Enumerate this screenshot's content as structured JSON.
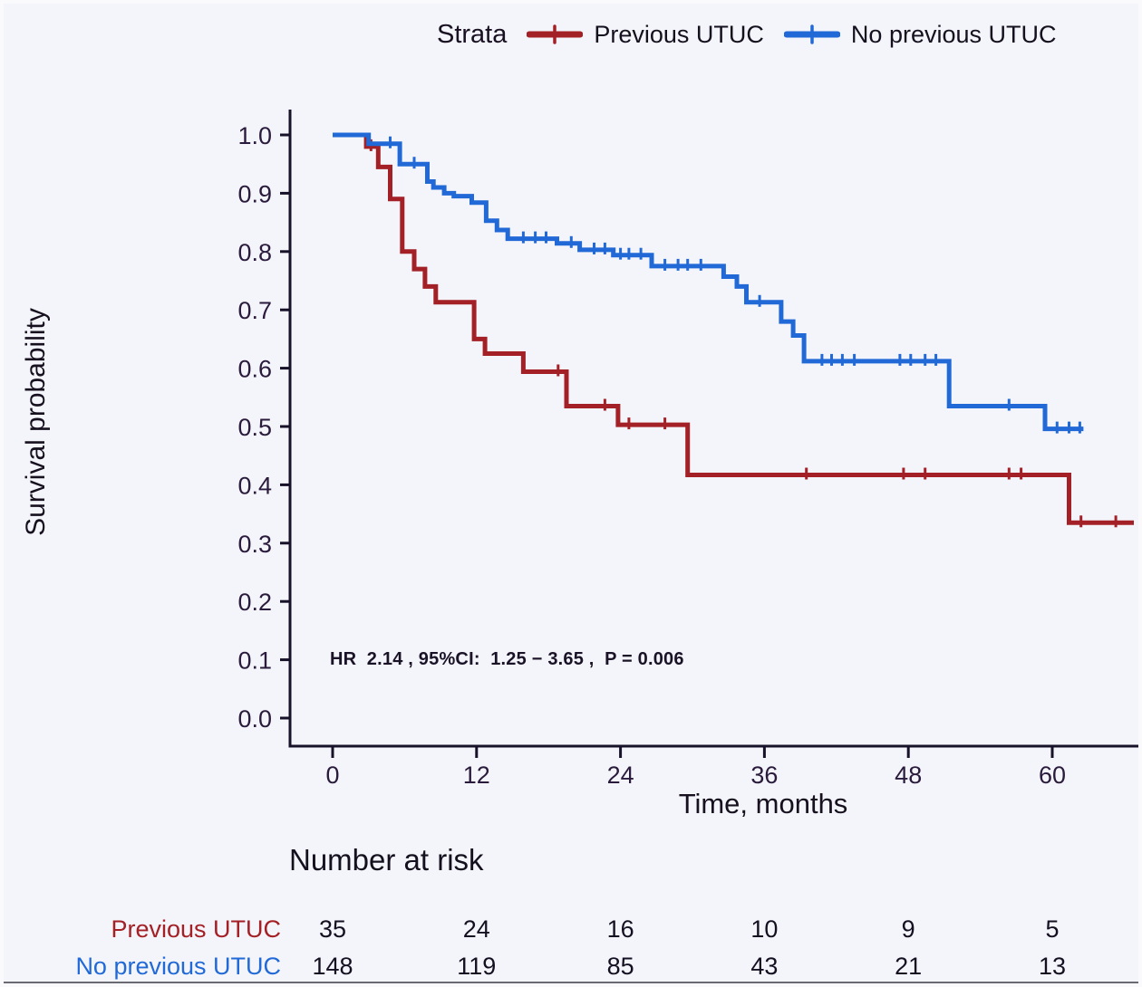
{
  "figure": {
    "background": "#f4f5fa"
  },
  "legend": {
    "title": "Strata",
    "items": [
      {
        "label": "Previous UTUC",
        "color": "#a32026"
      },
      {
        "label": "No previous UTUC",
        "color": "#2169d6"
      }
    ]
  },
  "axes": {
    "ylabel": "Survival probability",
    "xlabel": "Time, months"
  },
  "annotation": {
    "text": "HR  2.14 , 95%CI:  1.25 − 3.65 ,  P = 0.006"
  },
  "chart_data": {
    "type": "line",
    "subtype": "kaplan-meier-step-curves",
    "title": "",
    "xlabel": "Time, months",
    "ylabel": "Survival probability",
    "xlim": [
      0,
      67
    ],
    "ylim": [
      0.0,
      1.0
    ],
    "x_ticks": [
      0,
      12,
      24,
      36,
      48,
      60
    ],
    "y_ticks": [
      0.0,
      0.1,
      0.2,
      0.3,
      0.4,
      0.5,
      0.6,
      0.7,
      0.8,
      0.9,
      1.0
    ],
    "grid": false,
    "legend_title": "Strata",
    "legend_position": "top",
    "annotation": "HR  2.14 , 95%CI:  1.25 − 3.65 ,  P = 0.006",
    "series": [
      {
        "name": "Previous UTUC",
        "color": "#a32026",
        "steps": [
          [
            0,
            1.0
          ],
          [
            2.8,
            0.98
          ],
          [
            3.8,
            0.945
          ],
          [
            4.8,
            0.89
          ],
          [
            5.8,
            0.8
          ],
          [
            6.8,
            0.77
          ],
          [
            7.7,
            0.74
          ],
          [
            8.6,
            0.713
          ],
          [
            11.8,
            0.65
          ],
          [
            12.7,
            0.625
          ],
          [
            15.9,
            0.594
          ],
          [
            19.5,
            0.535
          ],
          [
            23.8,
            0.503
          ],
          [
            29.6,
            0.417
          ],
          [
            61.4,
            0.335
          ]
        ],
        "end_time": 66.8,
        "censor_marks": [
          [
            3.2,
            0.98
          ],
          [
            18.8,
            0.594
          ],
          [
            22.7,
            0.535
          ],
          [
            24.7,
            0.503
          ],
          [
            27.7,
            0.503
          ],
          [
            39.5,
            0.417
          ],
          [
            47.6,
            0.417
          ],
          [
            49.4,
            0.417
          ],
          [
            56.4,
            0.417
          ],
          [
            57.4,
            0.417
          ],
          [
            62.4,
            0.335
          ],
          [
            65.3,
            0.335
          ]
        ]
      },
      {
        "name": "No previous UTUC",
        "color": "#2169d6",
        "steps": [
          [
            0,
            1.0
          ],
          [
            3.0,
            0.985
          ],
          [
            5.6,
            0.95
          ],
          [
            7.9,
            0.92
          ],
          [
            8.4,
            0.91
          ],
          [
            9.3,
            0.9
          ],
          [
            10.1,
            0.895
          ],
          [
            11.6,
            0.884
          ],
          [
            12.8,
            0.853
          ],
          [
            13.7,
            0.837
          ],
          [
            14.6,
            0.822
          ],
          [
            18.7,
            0.814
          ],
          [
            20.6,
            0.803
          ],
          [
            23.4,
            0.794
          ],
          [
            26.6,
            0.775
          ],
          [
            32.6,
            0.757
          ],
          [
            33.7,
            0.74
          ],
          [
            34.5,
            0.713
          ],
          [
            37.4,
            0.68
          ],
          [
            38.4,
            0.656
          ],
          [
            39.3,
            0.612
          ],
          [
            51.4,
            0.535
          ],
          [
            59.4,
            0.496
          ]
        ],
        "end_time": 62.6,
        "censor_marks": [
          [
            4.8,
            0.985
          ],
          [
            6.8,
            0.95
          ],
          [
            15.9,
            0.822
          ],
          [
            16.9,
            0.822
          ],
          [
            17.8,
            0.822
          ],
          [
            19.9,
            0.814
          ],
          [
            21.8,
            0.803
          ],
          [
            22.7,
            0.803
          ],
          [
            24.0,
            0.794
          ],
          [
            24.7,
            0.794
          ],
          [
            25.7,
            0.794
          ],
          [
            27.7,
            0.775
          ],
          [
            28.8,
            0.775
          ],
          [
            29.6,
            0.775
          ],
          [
            30.7,
            0.775
          ],
          [
            35.6,
            0.713
          ],
          [
            40.8,
            0.612
          ],
          [
            41.6,
            0.612
          ],
          [
            42.5,
            0.612
          ],
          [
            43.5,
            0.612
          ],
          [
            47.3,
            0.612
          ],
          [
            48.2,
            0.612
          ],
          [
            49.4,
            0.612
          ],
          [
            50.3,
            0.612
          ],
          [
            56.4,
            0.535
          ],
          [
            60.4,
            0.496
          ],
          [
            61.4,
            0.496
          ],
          [
            62.3,
            0.496
          ]
        ]
      }
    ]
  },
  "risk_table": {
    "title": "Number at risk",
    "times": [
      0,
      12,
      24,
      36,
      48,
      60
    ],
    "rows": [
      {
        "label": "Previous UTUC",
        "color": "#a32026",
        "values": [
          35,
          24,
          16,
          10,
          9,
          5
        ]
      },
      {
        "label": "No previous UTUC",
        "color": "#2169d6",
        "values": [
          148,
          119,
          85,
          43,
          21,
          13
        ]
      }
    ]
  }
}
